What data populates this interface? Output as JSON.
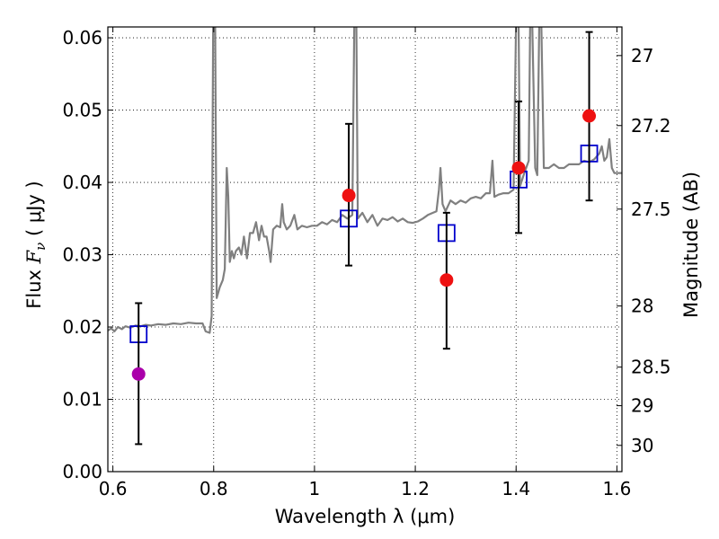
{
  "chart_data": {
    "type": "scatter",
    "xlabel": "Wavelength  λ (μm)",
    "ylabel_left_parts": [
      "Flux  ",
      "F",
      "ν",
      "  ( μJy )"
    ],
    "ylabel_right": "Magnitude (AB)",
    "xlim": [
      0.59,
      1.61
    ],
    "ylim": [
      0.0,
      0.0615
    ],
    "grid": true,
    "x_ticks": [
      {
        "value": 0.6,
        "label": "0.6"
      },
      {
        "value": 0.8,
        "label": "0.8"
      },
      {
        "value": 1.0,
        "label": "1"
      },
      {
        "value": 1.2,
        "label": "1.2"
      },
      {
        "value": 1.4,
        "label": "1.4"
      },
      {
        "value": 1.6,
        "label": "1.6"
      }
    ],
    "y_ticks": [
      {
        "value": 0.0,
        "label": "0.00"
      },
      {
        "value": 0.01,
        "label": "0.01"
      },
      {
        "value": 0.02,
        "label": "0.02"
      },
      {
        "value": 0.03,
        "label": "0.03"
      },
      {
        "value": 0.04,
        "label": "0.04"
      },
      {
        "value": 0.05,
        "label": "0.05"
      },
      {
        "value": 0.06,
        "label": "0.06"
      }
    ],
    "right_ticks": [
      {
        "mag": 27,
        "label": "27"
      },
      {
        "mag": 27.2,
        "label": "27.2"
      },
      {
        "mag": 27.5,
        "label": "27.5"
      },
      {
        "mag": 28,
        "label": "28"
      },
      {
        "mag": 28.5,
        "label": "28.5"
      },
      {
        "mag": 29,
        "label": "29"
      },
      {
        "mag": 30,
        "label": "30"
      }
    ],
    "series": [
      {
        "kind": "spectrum",
        "color": "#808080",
        "points": [
          [
            0.59,
            0.0195
          ],
          [
            0.597,
            0.0198
          ],
          [
            0.603,
            0.0194
          ],
          [
            0.61,
            0.02
          ],
          [
            0.618,
            0.0197
          ],
          [
            0.625,
            0.0201
          ],
          [
            0.635,
            0.0199
          ],
          [
            0.645,
            0.0202
          ],
          [
            0.655,
            0.0201
          ],
          [
            0.665,
            0.0203
          ],
          [
            0.675,
            0.0202
          ],
          [
            0.69,
            0.0204
          ],
          [
            0.705,
            0.0203
          ],
          [
            0.72,
            0.0205
          ],
          [
            0.735,
            0.0204
          ],
          [
            0.75,
            0.0206
          ],
          [
            0.765,
            0.0205
          ],
          [
            0.778,
            0.0205
          ],
          [
            0.784,
            0.0194
          ],
          [
            0.792,
            0.0192
          ],
          [
            0.796,
            0.0215
          ],
          [
            0.799,
            0.062
          ],
          [
            0.803,
            0.062
          ],
          [
            0.806,
            0.024
          ],
          [
            0.812,
            0.0255
          ],
          [
            0.818,
            0.0265
          ],
          [
            0.822,
            0.028
          ],
          [
            0.826,
            0.042
          ],
          [
            0.829,
            0.038
          ],
          [
            0.832,
            0.029
          ],
          [
            0.836,
            0.0305
          ],
          [
            0.84,
            0.0295
          ],
          [
            0.844,
            0.0305
          ],
          [
            0.85,
            0.031
          ],
          [
            0.855,
            0.03
          ],
          [
            0.86,
            0.0325
          ],
          [
            0.866,
            0.0295
          ],
          [
            0.872,
            0.033
          ],
          [
            0.878,
            0.033
          ],
          [
            0.884,
            0.0345
          ],
          [
            0.89,
            0.032
          ],
          [
            0.895,
            0.034
          ],
          [
            0.9,
            0.0325
          ],
          [
            0.905,
            0.0325
          ],
          [
            0.91,
            0.0305
          ],
          [
            0.913,
            0.029
          ],
          [
            0.918,
            0.0335
          ],
          [
            0.925,
            0.034
          ],
          [
            0.932,
            0.0338
          ],
          [
            0.936,
            0.037
          ],
          [
            0.939,
            0.0345
          ],
          [
            0.945,
            0.0335
          ],
          [
            0.952,
            0.034
          ],
          [
            0.96,
            0.0355
          ],
          [
            0.966,
            0.0335
          ],
          [
            0.975,
            0.034
          ],
          [
            0.985,
            0.0338
          ],
          [
            0.995,
            0.034
          ],
          [
            1.005,
            0.034
          ],
          [
            1.015,
            0.0345
          ],
          [
            1.025,
            0.0342
          ],
          [
            1.035,
            0.0348
          ],
          [
            1.045,
            0.0345
          ],
          [
            1.055,
            0.0355
          ],
          [
            1.065,
            0.035
          ],
          [
            1.075,
            0.0355
          ],
          [
            1.079,
            0.062
          ],
          [
            1.083,
            0.062
          ],
          [
            1.086,
            0.035
          ],
          [
            1.095,
            0.0358
          ],
          [
            1.105,
            0.0345
          ],
          [
            1.115,
            0.0355
          ],
          [
            1.125,
            0.034
          ],
          [
            1.135,
            0.035
          ],
          [
            1.145,
            0.0348
          ],
          [
            1.155,
            0.0352
          ],
          [
            1.165,
            0.0346
          ],
          [
            1.175,
            0.035
          ],
          [
            1.185,
            0.0345
          ],
          [
            1.195,
            0.0344
          ],
          [
            1.205,
            0.0346
          ],
          [
            1.215,
            0.035
          ],
          [
            1.225,
            0.0355
          ],
          [
            1.235,
            0.0358
          ],
          [
            1.242,
            0.036
          ],
          [
            1.247,
            0.039
          ],
          [
            1.25,
            0.042
          ],
          [
            1.254,
            0.037
          ],
          [
            1.26,
            0.036
          ],
          [
            1.27,
            0.0375
          ],
          [
            1.28,
            0.037
          ],
          [
            1.29,
            0.0375
          ],
          [
            1.3,
            0.0372
          ],
          [
            1.31,
            0.0378
          ],
          [
            1.32,
            0.038
          ],
          [
            1.33,
            0.0378
          ],
          [
            1.34,
            0.0385
          ],
          [
            1.348,
            0.0385
          ],
          [
            1.353,
            0.043
          ],
          [
            1.357,
            0.038
          ],
          [
            1.365,
            0.0383
          ],
          [
            1.375,
            0.0385
          ],
          [
            1.385,
            0.0385
          ],
          [
            1.395,
            0.039
          ],
          [
            1.4,
            0.062
          ],
          [
            1.405,
            0.062
          ],
          [
            1.408,
            0.0395
          ],
          [
            1.415,
            0.041
          ],
          [
            1.425,
            0.043
          ],
          [
            1.428,
            0.062
          ],
          [
            1.432,
            0.062
          ],
          [
            1.438,
            0.042
          ],
          [
            1.442,
            0.041
          ],
          [
            1.446,
            0.062
          ],
          [
            1.45,
            0.062
          ],
          [
            1.455,
            0.042
          ],
          [
            1.465,
            0.042
          ],
          [
            1.475,
            0.0425
          ],
          [
            1.485,
            0.042
          ],
          [
            1.495,
            0.042
          ],
          [
            1.505,
            0.0425
          ],
          [
            1.515,
            0.0425
          ],
          [
            1.525,
            0.0425
          ],
          [
            1.535,
            0.043
          ],
          [
            1.545,
            0.0428
          ],
          [
            1.555,
            0.0432
          ],
          [
            1.565,
            0.044
          ],
          [
            1.57,
            0.045
          ],
          [
            1.575,
            0.043
          ],
          [
            1.58,
            0.0435
          ],
          [
            1.585,
            0.046
          ],
          [
            1.59,
            0.042
          ],
          [
            1.595,
            0.0413
          ],
          [
            1.6,
            0.0413
          ],
          [
            1.61,
            0.0413
          ]
        ]
      },
      {
        "kind": "model-squares",
        "color": "#0000cc",
        "points": [
          [
            0.651,
            0.019
          ],
          [
            1.068,
            0.035
          ],
          [
            1.262,
            0.033
          ],
          [
            1.405,
            0.0404
          ],
          [
            1.545,
            0.044
          ]
        ]
      },
      {
        "kind": "observed-detections",
        "color": "#ee1111",
        "points": [
          {
            "x": 1.068,
            "y": 0.0382,
            "err_low": 0.0285,
            "err_high": 0.0481
          },
          {
            "x": 1.262,
            "y": 0.0265,
            "err_low": 0.017,
            "err_high": 0.0358
          },
          {
            "x": 1.405,
            "y": 0.042,
            "err_low": 0.033,
            "err_high": 0.0512
          },
          {
            "x": 1.545,
            "y": 0.0492,
            "err_low": 0.0375,
            "err_high": 0.0608
          }
        ]
      },
      {
        "kind": "observed-low-significance",
        "color": "#aa00aa",
        "points": [
          {
            "x": 0.651,
            "y": 0.0135,
            "err_low": 0.0038,
            "err_high": 0.0233
          }
        ]
      }
    ]
  }
}
